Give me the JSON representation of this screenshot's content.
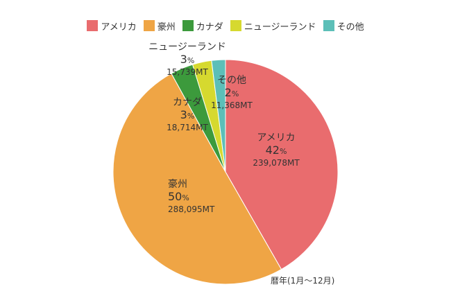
{
  "chart_data": {
    "type": "pie",
    "caption": "暦年(1月〜12月)",
    "legend_position": "top",
    "slices": [
      {
        "name": "アメリカ",
        "percent_label": "42",
        "amount": "239,078MT",
        "value": 239078,
        "color": "#e96c6e"
      },
      {
        "name": "豪州",
        "percent_label": "50",
        "amount": "288,095MT",
        "value": 288095,
        "color": "#efa545"
      },
      {
        "name": "カナダ",
        "percent_label": "3",
        "amount": "18,714MT",
        "value": 18714,
        "color": "#3c9a3c"
      },
      {
        "name": "ニュージーランド",
        "percent_label": "3",
        "amount": "15,739MT",
        "value": 15739,
        "color": "#d6d92f"
      },
      {
        "name": "その他",
        "percent_label": "2",
        "amount": "11,368MT",
        "value": 11368,
        "color": "#5cbfb8"
      }
    ],
    "percent_unit": "%"
  }
}
